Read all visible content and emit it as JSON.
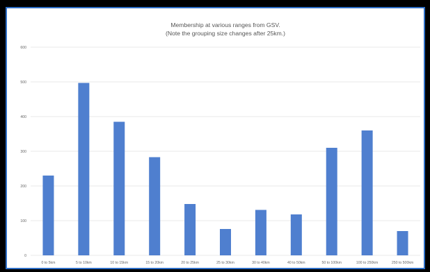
{
  "chart_data": {
    "type": "bar",
    "title": [
      "Membership at various ranges from GSV.",
      "(Note the grouping size changes after 25km.)"
    ],
    "xlabel": "",
    "ylabel": "",
    "ylim": [
      0,
      600
    ],
    "yticks": [
      0,
      100,
      200,
      300,
      400,
      500,
      600
    ],
    "grid": true,
    "legend": "none",
    "bar_color": "#4f7fcf",
    "grid_color": "#e3e3e3",
    "categories": [
      "0 to 5km",
      "5 to 10km",
      "10 to 15km",
      "15 to 20km",
      "20 to 25km",
      "25 to 30km",
      "30 to 40km",
      "40 to 50km",
      "50 to 100km",
      "100 to 250km",
      "250 to 500km"
    ],
    "values": [
      230,
      497,
      385,
      283,
      148,
      76,
      131,
      118,
      310,
      360,
      70
    ]
  }
}
